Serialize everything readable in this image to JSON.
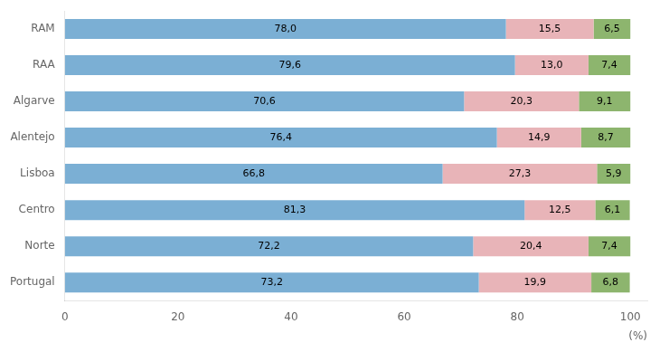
{
  "chart_data": {
    "type": "bar",
    "orientation": "horizontal",
    "stacked": true,
    "categories": [
      "Portugal",
      "Norte",
      "Centro",
      "Lisboa",
      "Alentejo",
      "Algarve",
      "RAA",
      "RAM"
    ],
    "series": [
      {
        "color": "#7BAFD4",
        "values": [
          73.2,
          72.2,
          81.3,
          66.8,
          76.4,
          70.6,
          79.6,
          78.0
        ],
        "value_labels": [
          "73,2",
          "72,2",
          "81,3",
          "66,8",
          "76,4",
          "70,6",
          "79,6",
          "78,0"
        ]
      },
      {
        "color": "#E8B4B8",
        "values": [
          19.9,
          20.4,
          12.5,
          27.3,
          14.9,
          20.3,
          13.0,
          15.5
        ],
        "value_labels": [
          "19,9",
          "20,4",
          "12,5",
          "27,3",
          "14,9",
          "20,3",
          "13,0",
          "15,5"
        ]
      },
      {
        "color": "#8DB56E",
        "values": [
          6.8,
          7.4,
          6.1,
          5.9,
          8.7,
          9.1,
          7.4,
          6.5
        ],
        "value_labels": [
          "6,8",
          "7,4",
          "6,1",
          "5,9",
          "8,7",
          "9,1",
          "7,4",
          "6,5"
        ]
      }
    ],
    "xlabel": "(%)",
    "xlim": [
      0,
      103
    ],
    "xticks": [
      0,
      20,
      40,
      60,
      80,
      100
    ],
    "grid": false,
    "data_labels": true
  }
}
